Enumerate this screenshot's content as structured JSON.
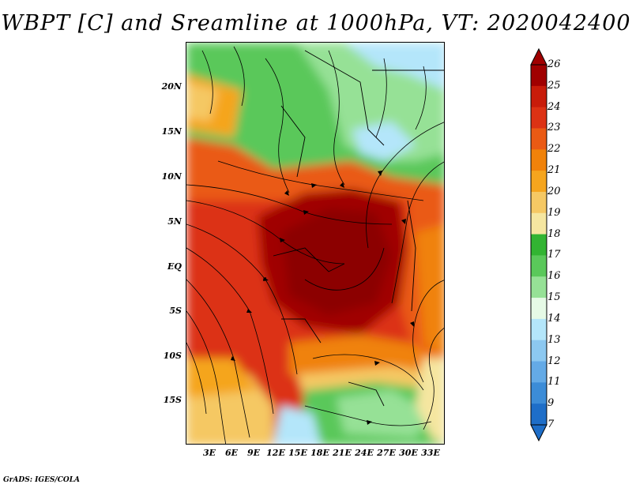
{
  "title": "WBPT [C] and Sreamline at 1000hPa, VT: 2020042400",
  "footer": "GrADS: IGES/COLA",
  "map": {
    "lat_labels": [
      "20N",
      "15N",
      "10N",
      "5N",
      "EQ",
      "5S",
      "10S",
      "15S"
    ],
    "lon_labels": [
      "3E",
      "6E",
      "9E",
      "12E",
      "15E",
      "18E",
      "21E",
      "24E",
      "27E",
      "30E",
      "33E"
    ],
    "lat_range": [
      -20,
      25
    ],
    "lon_range": [
      0,
      35
    ],
    "variable": "Wet-bulb potential temperature",
    "units": "C",
    "level": "1000hPa",
    "overlay": "streamlines"
  },
  "colorbar": {
    "labels": [
      "26",
      "25",
      "24",
      "23",
      "22",
      "21",
      "20",
      "19",
      "18",
      "17",
      "16",
      "15",
      "14",
      "13",
      "12",
      "11",
      "9",
      "7"
    ],
    "colors": [
      "#a00000",
      "#c81c0a",
      "#dc3214",
      "#ea5a14",
      "#f0820a",
      "#f5a51e",
      "#f5c864",
      "#f5e6a0",
      "#32b432",
      "#5ac85a",
      "#96e196",
      "#e6fae6",
      "#b4e6fa",
      "#8cc8f0",
      "#64aae6",
      "#3c8cd7",
      "#1e6ec8"
    ],
    "over_color": "#a00000",
    "under_color": "#1e6ec8"
  }
}
